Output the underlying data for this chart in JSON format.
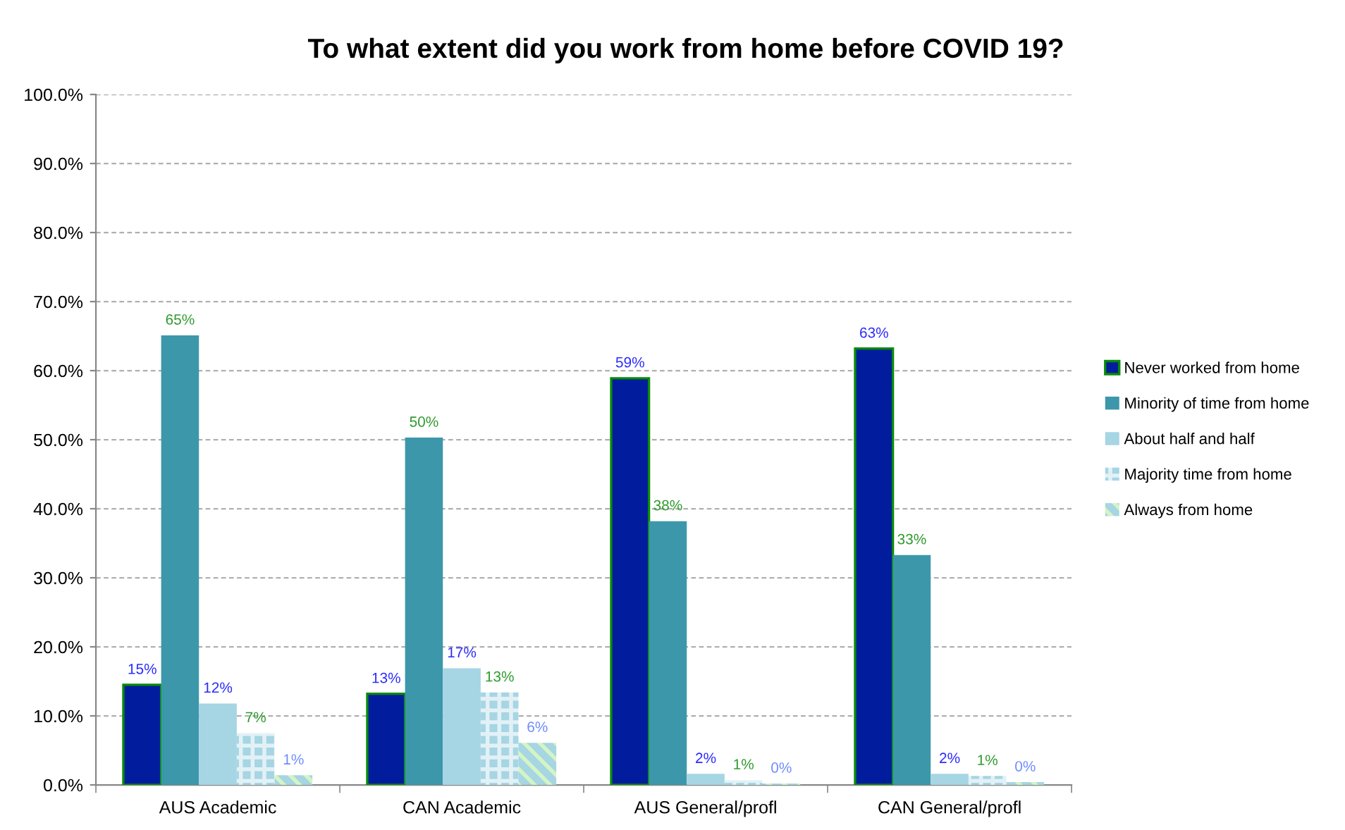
{
  "chart_data": {
    "type": "bar",
    "title": "To what extent did you work from home before COVID 19?",
    "categories": [
      "AUS Academic",
      "CAN Academic",
      "AUS General/profl",
      "CAN General/profl"
    ],
    "series": [
      {
        "name": "Never worked from home",
        "color": "#021c9e",
        "values": [
          14.5,
          13.2,
          58.9,
          63.2
        ],
        "value_labels": [
          "15%",
          "13%",
          "59%",
          "63%"
        ]
      },
      {
        "name": "Minority of time from home",
        "color": "#3d97ab",
        "values": [
          65.1,
          50.3,
          38.2,
          33.3
        ],
        "value_labels": [
          "65%",
          "50%",
          "38%",
          "33%"
        ]
      },
      {
        "name": "About half and half",
        "color": "#a6d5e3",
        "values": [
          11.8,
          16.9,
          1.6,
          1.6
        ],
        "value_labels": [
          "12%",
          "17%",
          "2%",
          "2%"
        ]
      },
      {
        "name": "Majority time from home",
        "color": "#a6d5e3",
        "values": [
          7.5,
          13.4,
          0.7,
          1.3
        ],
        "value_labels": [
          "7%",
          "13%",
          "1%",
          "1%"
        ]
      },
      {
        "name": "Always from home",
        "color": "#a6d5e3",
        "values": [
          1.4,
          6.1,
          0.2,
          0.4
        ],
        "value_labels": [
          "1%",
          "6%",
          "0%",
          "0%"
        ]
      }
    ],
    "ylim": [
      0,
      100
    ],
    "yticks": [
      {
        "value": 0,
        "label": "0.0%"
      },
      {
        "value": 10,
        "label": "10.0%"
      },
      {
        "value": 20,
        "label": "20.0%"
      },
      {
        "value": 30,
        "label": "30.0%"
      },
      {
        "value": 40,
        "label": "40.0%"
      },
      {
        "value": 50,
        "label": "50.0%"
      },
      {
        "value": 60,
        "label": "60.0%"
      },
      {
        "value": 70,
        "label": "70.0%"
      },
      {
        "value": 80,
        "label": "80.0%"
      },
      {
        "value": 90,
        "label": "90.0%"
      },
      {
        "value": 100,
        "label": "100.0%"
      }
    ],
    "grid": "y",
    "legend": "right"
  }
}
